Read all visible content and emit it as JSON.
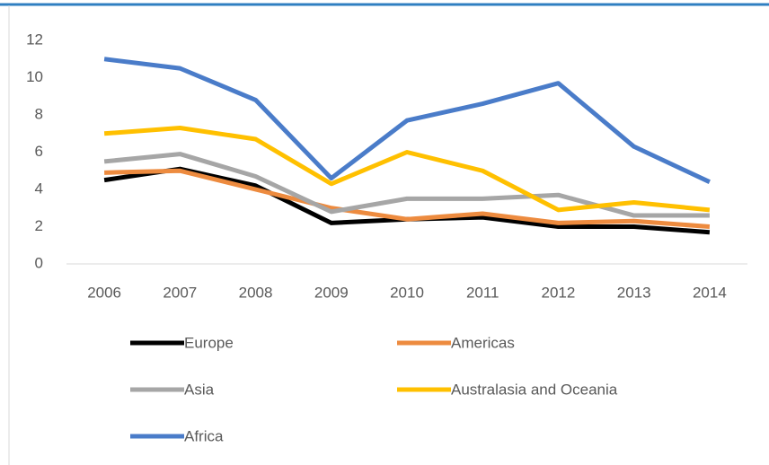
{
  "chart_data": {
    "type": "line",
    "categories": [
      "2006",
      "2007",
      "2008",
      "2009",
      "2010",
      "2011",
      "2012",
      "2013",
      "2014"
    ],
    "series": [
      {
        "name": "Europe",
        "color": "#000000",
        "values": [
          4.5,
          5.1,
          4.2,
          2.2,
          2.4,
          2.5,
          2.0,
          2.0,
          1.7
        ]
      },
      {
        "name": "Americas",
        "color": "#ed8b3f",
        "values": [
          4.9,
          5.0,
          4.0,
          3.0,
          2.4,
          2.7,
          2.2,
          2.3,
          2.0
        ]
      },
      {
        "name": "Asia",
        "color": "#a6a6a6",
        "values": [
          5.5,
          5.9,
          4.7,
          2.8,
          3.5,
          3.5,
          3.7,
          2.6,
          2.6
        ]
      },
      {
        "name": "Australasia and Oceania",
        "color": "#ffc000",
        "values": [
          7.0,
          7.3,
          6.7,
          4.3,
          6.0,
          5.0,
          2.9,
          3.3,
          2.9
        ]
      },
      {
        "name": "Africa",
        "color": "#4a7cc9",
        "values": [
          11.0,
          10.5,
          8.8,
          4.6,
          7.7,
          8.6,
          9.7,
          6.3,
          4.4
        ]
      }
    ],
    "ylim": [
      0,
      12
    ],
    "yticks": [
      0,
      2,
      4,
      6,
      8,
      10,
      12
    ],
    "grid": false
  }
}
